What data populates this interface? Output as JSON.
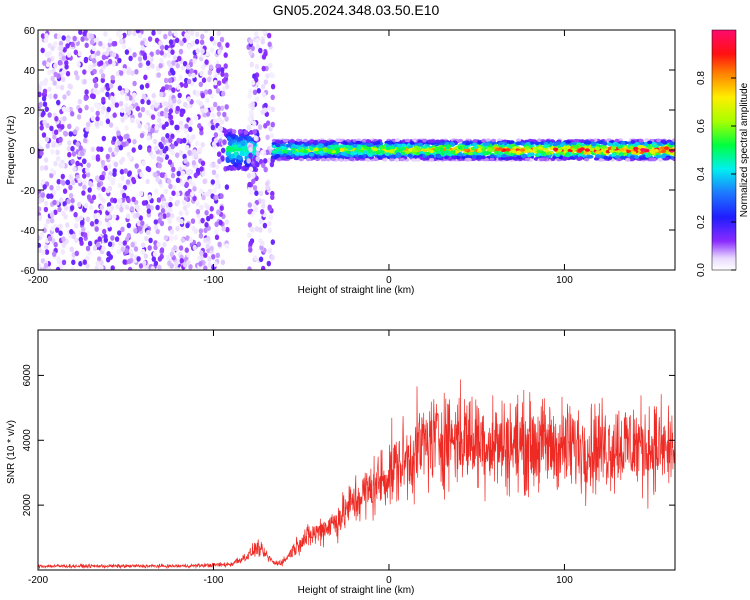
{
  "title": "GN05.2024.348.03.50.E10",
  "chart_data": [
    {
      "type": "heatmap",
      "name": "spectrogram",
      "xlabel": "Height of straight line (km)",
      "ylabel": "Frequency (Hz)",
      "xlim": [
        -200,
        163
      ],
      "ylim": [
        -60,
        60
      ],
      "xticks": [
        -200,
        -100,
        0,
        100
      ],
      "yticks": [
        60,
        40,
        20,
        0,
        -20,
        -40,
        -60
      ],
      "colorbar": {
        "label": "Normalized spectral amplitude",
        "range": [
          0,
          1
        ],
        "ticks": [
          "0.0",
          "0.2",
          "0.4",
          "0.6",
          "0.8"
        ],
        "colormap": "rainbow (white-purple-blue-cyan-green-yellow-orange-red-magenta)"
      },
      "regions": [
        {
          "x_range": [
            -200,
            -92
          ],
          "freq_range": [
            -60,
            60
          ],
          "amplitude": "low (0.0-0.2), broadband noise"
        },
        {
          "x_range": [
            -92,
            -75
          ],
          "freq_range": [
            -10,
            10
          ],
          "amplitude": "0.1-0.4 near 0 Hz"
        },
        {
          "x_range": [
            -80,
            -66
          ],
          "freq_range": [
            -60,
            60
          ],
          "amplitude": "low (0.0-0.2), broadband noise"
        },
        {
          "x_range": [
            -66,
            163
          ],
          "freq_range": [
            -5,
            5
          ],
          "center_freq_hz": 0,
          "amplitude": "0.4-1.0, strongest near 0 Hz"
        }
      ]
    },
    {
      "type": "line",
      "name": "snr",
      "xlabel": "Height of straight line (km)",
      "ylabel": "SNR (10 * v/v)",
      "xlim": [
        -200,
        163
      ],
      "ylim": [
        0,
        7400
      ],
      "xticks": [
        -200,
        -100,
        0,
        100
      ],
      "yticks": [
        2000,
        4000,
        6000
      ],
      "color": "#ee2a24",
      "series": [
        {
          "x": [
            -200,
            -180,
            -160,
            -140,
            -120,
            -100,
            -90,
            -80,
            -75,
            -70,
            -65,
            -60,
            -55,
            -50,
            -40,
            -30,
            -20,
            -10,
            0,
            10,
            20,
            30,
            40,
            50,
            60,
            70,
            80,
            90,
            100,
            110,
            120,
            130,
            140,
            150,
            163
          ],
          "y": [
            120,
            120,
            120,
            120,
            120,
            150,
            180,
            450,
            700,
            450,
            200,
            260,
            600,
            900,
            1200,
            1500,
            2100,
            2500,
            3000,
            3400,
            3900,
            4100,
            4100,
            4000,
            3900,
            3900,
            3850,
            3850,
            3800,
            3800,
            3800,
            3850,
            3850,
            3800,
            3700
          ]
        }
      ]
    }
  ]
}
